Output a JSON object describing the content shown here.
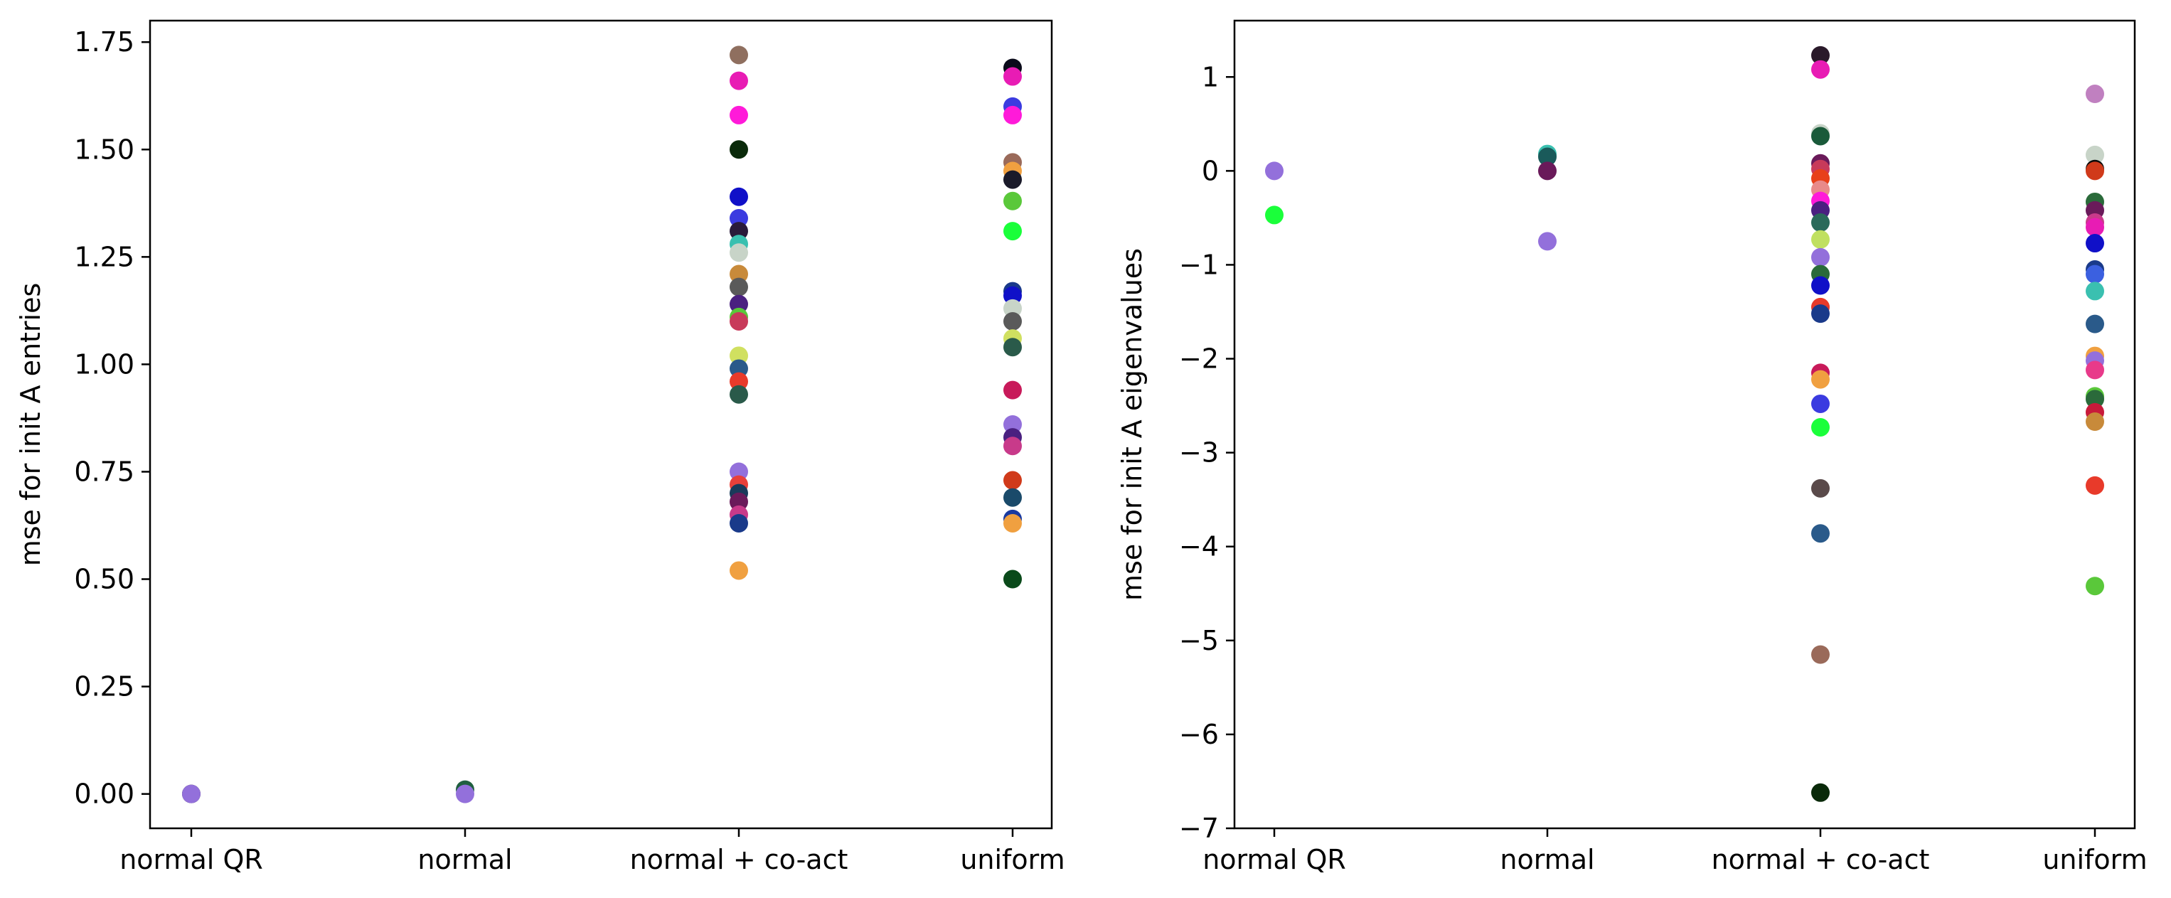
{
  "chart_data": [
    {
      "type": "scatter",
      "ylabel": "mse for init A entries",
      "categories": [
        "normal QR",
        "normal",
        "normal + co-act",
        "uniform"
      ],
      "ylim": [
        -0.08,
        1.8
      ],
      "yticks": [
        0.0,
        0.25,
        0.5,
        0.75,
        1.0,
        1.25,
        1.5,
        1.75
      ],
      "ytick_labels": [
        "0.00",
        "0.25",
        "0.50",
        "0.75",
        "1.00",
        "1.25",
        "1.50",
        "1.75"
      ],
      "grid": false,
      "points": [
        {
          "x": "normal QR",
          "y": 0.0,
          "color": "#000000"
        },
        {
          "x": "normal QR",
          "y": 0.0,
          "color": "#9370db"
        },
        {
          "x": "normal",
          "y": 0.01,
          "color": "#1f5f3f"
        },
        {
          "x": "normal",
          "y": 0.0,
          "color": "#9370db"
        },
        {
          "x": "normal + co-act",
          "y": 1.72,
          "color": "#8f6f5f"
        },
        {
          "x": "normal + co-act",
          "y": 1.66,
          "color": "#e81cb4"
        },
        {
          "x": "normal + co-act",
          "y": 1.58,
          "color": "#ff1ad9"
        },
        {
          "x": "normal + co-act",
          "y": 1.5,
          "color": "#0a2a0a"
        },
        {
          "x": "normal + co-act",
          "y": 1.39,
          "color": "#1010c8"
        },
        {
          "x": "normal + co-act",
          "y": 1.34,
          "color": "#3b3be0"
        },
        {
          "x": "normal + co-act",
          "y": 1.31,
          "color": "#2a1a3a"
        },
        {
          "x": "normal + co-act",
          "y": 1.28,
          "color": "#3ac0b0"
        },
        {
          "x": "normal + co-act",
          "y": 1.26,
          "color": "#c8d4c8"
        },
        {
          "x": "normal + co-act",
          "y": 1.21,
          "color": "#c88a3a"
        },
        {
          "x": "normal + co-act",
          "y": 1.18,
          "color": "#5a5a5a"
        },
        {
          "x": "normal + co-act",
          "y": 1.14,
          "color": "#4a2080"
        },
        {
          "x": "normal + co-act",
          "y": 1.11,
          "color": "#5ac83a"
        },
        {
          "x": "normal + co-act",
          "y": 1.1,
          "color": "#c83a5a"
        },
        {
          "x": "normal + co-act",
          "y": 1.02,
          "color": "#d0e060"
        },
        {
          "x": "normal + co-act",
          "y": 0.99,
          "color": "#2a5a8a"
        },
        {
          "x": "normal + co-act",
          "y": 0.96,
          "color": "#e83a2a"
        },
        {
          "x": "normal + co-act",
          "y": 0.93,
          "color": "#2a5a4a"
        },
        {
          "x": "normal + co-act",
          "y": 0.75,
          "color": "#9370db"
        },
        {
          "x": "normal + co-act",
          "y": 0.72,
          "color": "#e8403a"
        },
        {
          "x": "normal + co-act",
          "y": 0.7,
          "color": "#1a3a5a"
        },
        {
          "x": "normal + co-act",
          "y": 0.68,
          "color": "#6a1a5a"
        },
        {
          "x": "normal + co-act",
          "y": 0.65,
          "color": "#c83a8a"
        },
        {
          "x": "normal + co-act",
          "y": 0.63,
          "color": "#1a3a8a"
        },
        {
          "x": "normal + co-act",
          "y": 0.52,
          "color": "#f0a040"
        },
        {
          "x": "uniform",
          "y": 1.69,
          "color": "#0a0a1a"
        },
        {
          "x": "uniform",
          "y": 1.67,
          "color": "#e81cb4"
        },
        {
          "x": "uniform",
          "y": 1.6,
          "color": "#3b3be0"
        },
        {
          "x": "uniform",
          "y": 1.58,
          "color": "#ff1ad9"
        },
        {
          "x": "uniform",
          "y": 1.47,
          "color": "#9a6a5a"
        },
        {
          "x": "uniform",
          "y": 1.45,
          "color": "#f0a040"
        },
        {
          "x": "uniform",
          "y": 1.43,
          "color": "#1a1a2a"
        },
        {
          "x": "uniform",
          "y": 1.38,
          "color": "#5ac83a"
        },
        {
          "x": "uniform",
          "y": 1.31,
          "color": "#1aff3a"
        },
        {
          "x": "uniform",
          "y": 1.17,
          "color": "#1a3a8a"
        },
        {
          "x": "uniform",
          "y": 1.16,
          "color": "#1010c8"
        },
        {
          "x": "uniform",
          "y": 1.13,
          "color": "#c8d4c8"
        },
        {
          "x": "uniform",
          "y": 1.1,
          "color": "#5a5a5a"
        },
        {
          "x": "uniform",
          "y": 1.06,
          "color": "#d0e060"
        },
        {
          "x": "uniform",
          "y": 1.04,
          "color": "#2a5a4a"
        },
        {
          "x": "uniform",
          "y": 0.94,
          "color": "#c81a5a"
        },
        {
          "x": "uniform",
          "y": 0.86,
          "color": "#9370db"
        },
        {
          "x": "uniform",
          "y": 0.83,
          "color": "#4a2080"
        },
        {
          "x": "uniform",
          "y": 0.81,
          "color": "#c83a8a"
        },
        {
          "x": "uniform",
          "y": 0.73,
          "color": "#d03a1a"
        },
        {
          "x": "uniform",
          "y": 0.69,
          "color": "#1a4a6a"
        },
        {
          "x": "uniform",
          "y": 0.64,
          "color": "#1a3aa0"
        },
        {
          "x": "uniform",
          "y": 0.63,
          "color": "#f0a040"
        },
        {
          "x": "uniform",
          "y": 0.5,
          "color": "#0a4a1a"
        }
      ]
    },
    {
      "type": "scatter",
      "ylabel": "mse for init A eigenvalues",
      "categories": [
        "normal QR",
        "normal",
        "normal + co-act",
        "uniform"
      ],
      "ylim": [
        -7.0,
        1.6
      ],
      "yticks": [
        1,
        0,
        -1,
        -2,
        -3,
        -4,
        -5,
        -6,
        -7
      ],
      "ytick_labels": [
        "1",
        "0",
        "−1",
        "−2",
        "−3",
        "−4",
        "−5",
        "−6",
        "−7"
      ],
      "grid": false,
      "points": [
        {
          "x": "normal QR",
          "y": 0.0,
          "color": "#9370db"
        },
        {
          "x": "normal QR",
          "y": -0.47,
          "color": "#1aff3a"
        },
        {
          "x": "normal",
          "y": 0.18,
          "color": "#3ac0b0"
        },
        {
          "x": "normal",
          "y": 0.15,
          "color": "#1a5a5a"
        },
        {
          "x": "normal",
          "y": 0.0,
          "color": "#6a1a5a"
        },
        {
          "x": "normal",
          "y": -0.75,
          "color": "#9370db"
        },
        {
          "x": "normal + co-act",
          "y": 1.23,
          "color": "#2a1a2a"
        },
        {
          "x": "normal + co-act",
          "y": 1.08,
          "color": "#e81cb4"
        },
        {
          "x": "normal + co-act",
          "y": 0.4,
          "color": "#c8d4c8"
        },
        {
          "x": "normal + co-act",
          "y": 0.37,
          "color": "#1a5a3a"
        },
        {
          "x": "normal + co-act",
          "y": 0.08,
          "color": "#6a1a5a"
        },
        {
          "x": "normal + co-act",
          "y": 0.02,
          "color": "#c83a5a"
        },
        {
          "x": "normal + co-act",
          "y": -0.08,
          "color": "#e8401a"
        },
        {
          "x": "normal + co-act",
          "y": -0.2,
          "color": "#e88a8a"
        },
        {
          "x": "normal + co-act",
          "y": -0.32,
          "color": "#ff1ad9"
        },
        {
          "x": "normal + co-act",
          "y": -0.42,
          "color": "#4a2080"
        },
        {
          "x": "normal + co-act",
          "y": -0.55,
          "color": "#2a6a5a"
        },
        {
          "x": "normal + co-act",
          "y": -0.73,
          "color": "#c0e060"
        },
        {
          "x": "normal + co-act",
          "y": -0.92,
          "color": "#9370db"
        },
        {
          "x": "normal + co-act",
          "y": -1.1,
          "color": "#2a6a3a"
        },
        {
          "x": "normal + co-act",
          "y": -1.22,
          "color": "#1010c8"
        },
        {
          "x": "normal + co-act",
          "y": -1.45,
          "color": "#e83a2a"
        },
        {
          "x": "normal + co-act",
          "y": -1.52,
          "color": "#1a3a8a"
        },
        {
          "x": "normal + co-act",
          "y": -2.15,
          "color": "#c81a5a"
        },
        {
          "x": "normal + co-act",
          "y": -2.22,
          "color": "#f0a040"
        },
        {
          "x": "normal + co-act",
          "y": -2.48,
          "color": "#3b3be0"
        },
        {
          "x": "normal + co-act",
          "y": -2.73,
          "color": "#1aff3a"
        },
        {
          "x": "normal + co-act",
          "y": -3.38,
          "color": "#5a4a4a"
        },
        {
          "x": "normal + co-act",
          "y": -3.86,
          "color": "#2a5a8a"
        },
        {
          "x": "normal + co-act",
          "y": -5.15,
          "color": "#9a6a5a"
        },
        {
          "x": "normal + co-act",
          "y": -6.62,
          "color": "#0a2a0a"
        },
        {
          "x": "uniform",
          "y": 0.82,
          "color": "#c080c0"
        },
        {
          "x": "uniform",
          "y": 0.17,
          "color": "#c8d4c8"
        },
        {
          "x": "uniform",
          "y": 0.02,
          "color": "#0a0a0a"
        },
        {
          "x": "uniform",
          "y": 0.0,
          "color": "#d03a1a"
        },
        {
          "x": "uniform",
          "y": -0.33,
          "color": "#2a6a3a"
        },
        {
          "x": "uniform",
          "y": -0.42,
          "color": "#6a1a5a"
        },
        {
          "x": "uniform",
          "y": -0.55,
          "color": "#c83a8a"
        },
        {
          "x": "uniform",
          "y": -0.6,
          "color": "#e81cb4"
        },
        {
          "x": "uniform",
          "y": -0.77,
          "color": "#1010c8"
        },
        {
          "x": "uniform",
          "y": -1.05,
          "color": "#1a3a8a"
        },
        {
          "x": "uniform",
          "y": -1.1,
          "color": "#3b60e0"
        },
        {
          "x": "uniform",
          "y": -1.28,
          "color": "#3ac0b0"
        },
        {
          "x": "uniform",
          "y": -1.63,
          "color": "#2a5a8a"
        },
        {
          "x": "uniform",
          "y": -1.97,
          "color": "#f0a040"
        },
        {
          "x": "uniform",
          "y": -2.02,
          "color": "#9370db"
        },
        {
          "x": "uniform",
          "y": -2.12,
          "color": "#e83a8a"
        },
        {
          "x": "uniform",
          "y": -2.4,
          "color": "#5ac83a"
        },
        {
          "x": "uniform",
          "y": -2.43,
          "color": "#2a6a3a"
        },
        {
          "x": "uniform",
          "y": -2.57,
          "color": "#c81a3a"
        },
        {
          "x": "uniform",
          "y": -2.67,
          "color": "#c88a3a"
        },
        {
          "x": "uniform",
          "y": -3.35,
          "color": "#e83a2a"
        },
        {
          "x": "uniform",
          "y": -4.42,
          "color": "#5ac83a"
        }
      ]
    }
  ]
}
